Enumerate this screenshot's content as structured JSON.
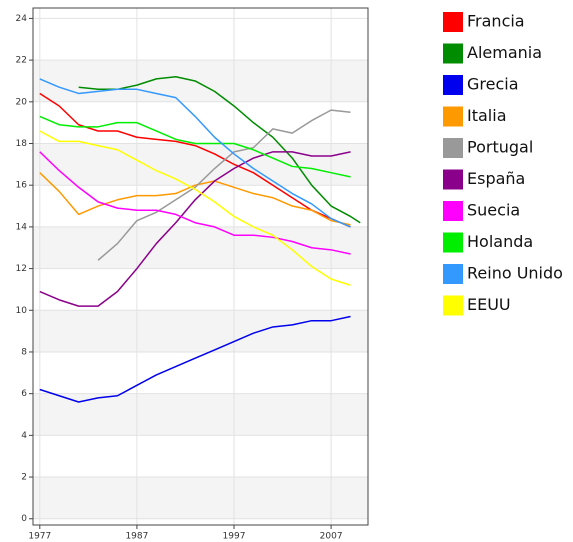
{
  "chart_data": {
    "type": "line",
    "x": [
      1977,
      1979,
      1981,
      1983,
      1985,
      1987,
      1989,
      1991,
      1993,
      1995,
      1997,
      1999,
      2001,
      2003,
      2005,
      2007,
      2009,
      2010
    ],
    "series": [
      {
        "name": "Francia",
        "color": "#ff0000",
        "values": [
          20.4,
          19.8,
          18.9,
          18.6,
          18.6,
          18.3,
          18.2,
          18.1,
          17.9,
          17.5,
          17.0,
          16.6,
          16.0,
          15.4,
          14.8,
          14.4,
          14.0,
          null
        ]
      },
      {
        "name": "Alemania",
        "color": "#008c00",
        "values": [
          null,
          null,
          20.7,
          20.6,
          20.6,
          20.8,
          21.1,
          21.2,
          21.0,
          20.5,
          19.8,
          19.0,
          18.3,
          17.3,
          16.0,
          15.0,
          14.5,
          14.2
        ]
      },
      {
        "name": "Grecia",
        "color": "#0000ee",
        "values": [
          6.2,
          5.9,
          5.6,
          5.8,
          5.9,
          6.4,
          6.9,
          7.3,
          7.7,
          8.1,
          8.5,
          8.9,
          9.2,
          9.3,
          9.5,
          9.5,
          9.7,
          null
        ]
      },
      {
        "name": "Italia",
        "color": "#ff9900",
        "values": [
          16.6,
          15.7,
          14.6,
          15.0,
          15.3,
          15.5,
          15.5,
          15.6,
          16.0,
          16.2,
          15.9,
          15.6,
          15.4,
          15.0,
          14.8,
          14.3,
          14.1,
          null
        ]
      },
      {
        "name": "Portugal",
        "color": "#999999",
        "values": [
          null,
          null,
          null,
          12.4,
          13.2,
          14.3,
          14.7,
          15.3,
          15.9,
          16.8,
          17.6,
          17.8,
          18.7,
          18.5,
          19.1,
          19.6,
          19.5,
          null
        ]
      },
      {
        "name": "España",
        "color": "#8b008b",
        "values": [
          10.9,
          10.5,
          10.2,
          10.2,
          10.9,
          12.0,
          13.2,
          14.2,
          15.3,
          16.2,
          16.8,
          17.3,
          17.6,
          17.6,
          17.4,
          17.4,
          17.6,
          null
        ]
      },
      {
        "name": "Suecia",
        "color": "#ff00ff",
        "values": [
          17.6,
          16.7,
          15.9,
          15.2,
          14.9,
          14.8,
          14.8,
          14.6,
          14.2,
          14.0,
          13.6,
          13.6,
          13.5,
          13.3,
          13.0,
          12.9,
          12.7,
          null
        ]
      },
      {
        "name": "Holanda",
        "color": "#00ee00",
        "values": [
          19.3,
          18.9,
          18.8,
          18.8,
          19.0,
          19.0,
          18.6,
          18.2,
          18.0,
          18.0,
          18.0,
          17.7,
          17.3,
          16.9,
          16.8,
          16.6,
          16.4,
          null
        ]
      },
      {
        "name": "Reino Unido",
        "color": "#3399ff",
        "values": [
          21.1,
          20.7,
          20.4,
          20.5,
          20.6,
          20.6,
          20.4,
          20.2,
          19.3,
          18.3,
          17.5,
          16.8,
          16.2,
          15.6,
          15.1,
          14.4,
          14.0,
          null
        ]
      },
      {
        "name": "EEUU",
        "color": "#ffff00",
        "values": [
          18.6,
          18.1,
          18.1,
          17.9,
          17.7,
          17.2,
          16.7,
          16.3,
          15.8,
          15.2,
          14.5,
          14.0,
          13.6,
          12.9,
          12.1,
          11.5,
          11.2,
          null
        ]
      }
    ],
    "xlim": [
      1976.3,
      2010.8
    ],
    "xticks": [
      1977,
      1987,
      1997,
      2007
    ],
    "ylim": [
      -0.3,
      24.5
    ],
    "yticks": [
      0,
      2,
      4,
      6,
      8,
      10,
      12,
      14,
      16,
      18,
      20,
      22,
      24
    ],
    "grid": true
  }
}
